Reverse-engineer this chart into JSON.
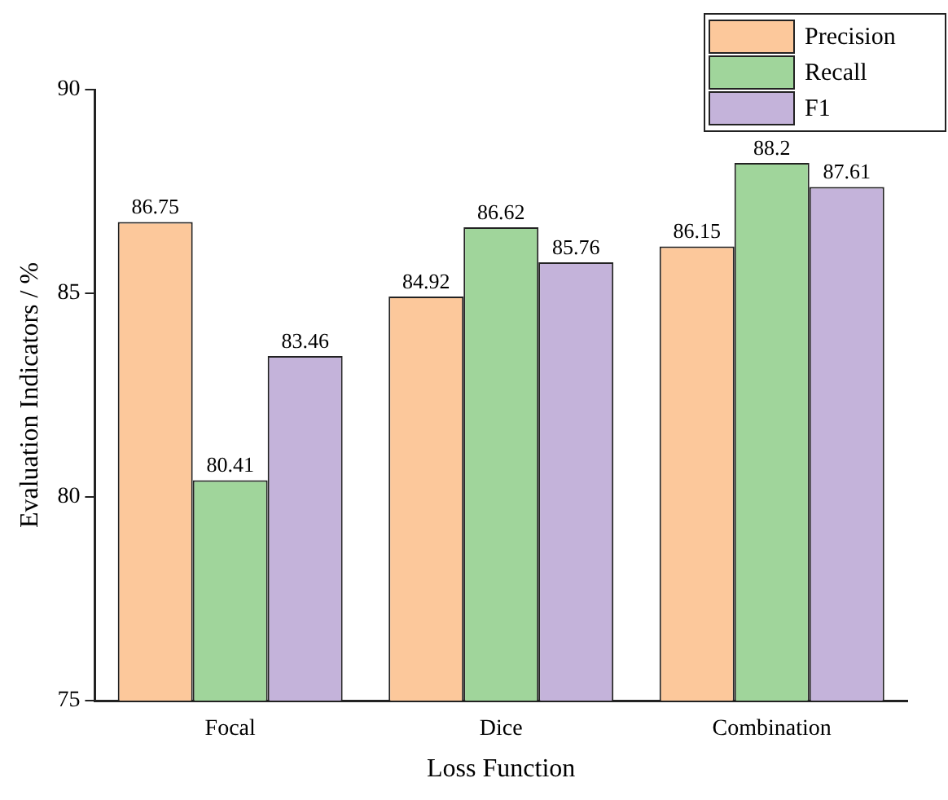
{
  "chart_data": {
    "type": "bar",
    "xlabel": "Loss Function",
    "ylabel": "Evaluation Indicators / %",
    "categories": [
      "Focal",
      "Dice",
      "Combination"
    ],
    "series": [
      {
        "name": "Precision",
        "color": "#fcc89b",
        "values": [
          86.75,
          84.92,
          86.15
        ]
      },
      {
        "name": "Recall",
        "color": "#a0d59b",
        "values": [
          80.41,
          86.62,
          88.2
        ]
      },
      {
        "name": "F1",
        "color": "#c4b3da",
        "values": [
          83.46,
          85.76,
          87.61
        ]
      }
    ],
    "ylim": [
      75,
      90
    ],
    "yticks": [
      75,
      80,
      85,
      90
    ],
    "grid": false,
    "legend": "top right",
    "data_labels": true
  }
}
